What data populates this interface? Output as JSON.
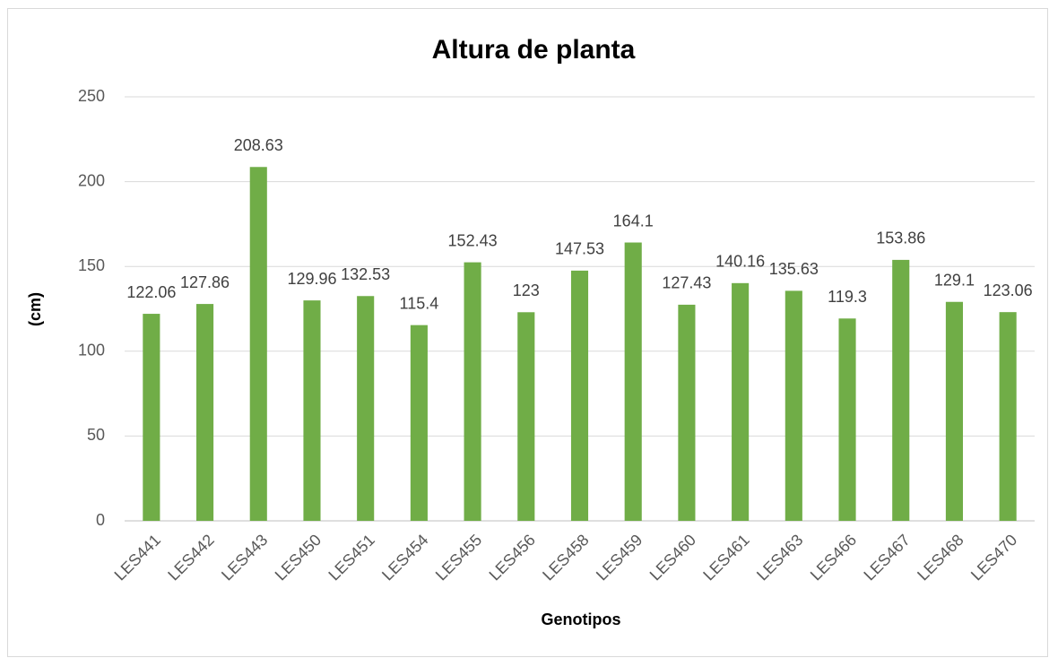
{
  "chart_data": {
    "type": "bar",
    "title": "Altura de planta",
    "x_label": "Genotipos",
    "y_label": "(cm)",
    "categories": [
      "LES441",
      "LES442",
      "LES443",
      "LES450",
      "LES451",
      "LES454",
      "LES455",
      "LES456",
      "LES458",
      "LES459",
      "LES460",
      "LES461",
      "LES463",
      "LES466",
      "LES467",
      "LES468",
      "LES470"
    ],
    "values": [
      122.06,
      127.86,
      208.63,
      129.96,
      132.53,
      115.4,
      152.43,
      123,
      147.53,
      164.1,
      127.43,
      140.16,
      135.63,
      119.3,
      153.86,
      129.1,
      123.06
    ],
    "color": "#70ad47",
    "ylim": [
      0,
      250
    ],
    "yticks": [
      0,
      50,
      100,
      150,
      200,
      250
    ],
    "grid": true
  }
}
